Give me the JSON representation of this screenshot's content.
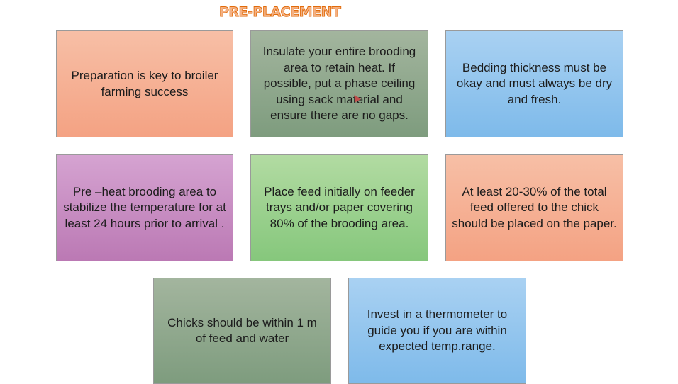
{
  "title": "PRE-PLACEMENT",
  "boxes": [
    {
      "text": "Preparation is key to broiler farming success"
    },
    {
      "text": "Insulate your entire brooding area to retain heat. If possible, put a phase ceiling using sack material and ensure there are no gaps."
    },
    {
      "text": "Bedding thickness must be okay and must always be dry and fresh."
    },
    {
      "text": "Pre –heat brooding area to stabilize the temperature for at least 24 hours prior to arrival ."
    },
    {
      "text": "Place feed initially on feeder trays and/or paper covering 80% of the brooding area."
    },
    {
      "text": "At least 20-30% of the total feed offered to the chick should be placed on the paper."
    },
    {
      "text": "Chicks should be within 1 m of feed and water"
    },
    {
      "text": "Invest in a thermometer  to guide you if you are within expected temp.range."
    }
  ],
  "colors": {
    "title_fill": "#f4b183",
    "title_outline": "#e26b0a",
    "orange": "#f4a283",
    "green": "#7e9c7e",
    "blue": "#7ebaea",
    "purple": "#bb79b4",
    "light_green": "#86c77c"
  }
}
